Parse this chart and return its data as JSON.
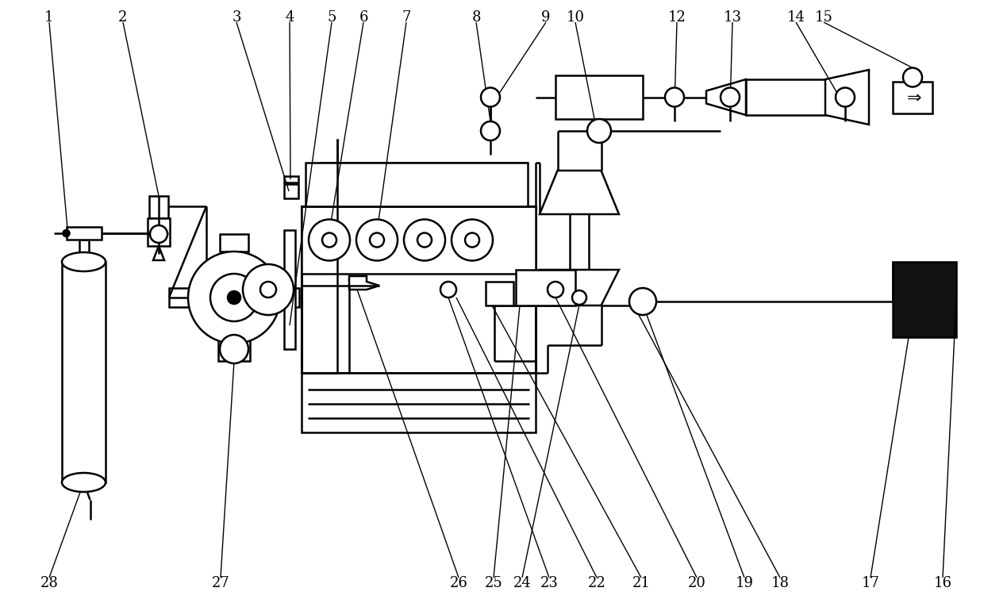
{
  "bg_color": "#ffffff",
  "lw": 1.8,
  "lw_thin": 1.0,
  "numbers_top": [
    [
      "1",
      62,
      738
    ],
    [
      "2",
      155,
      738
    ],
    [
      "3",
      298,
      738
    ],
    [
      "4",
      365,
      738
    ],
    [
      "5",
      418,
      738
    ],
    [
      "6",
      458,
      738
    ],
    [
      "7",
      512,
      738
    ],
    [
      "8",
      600,
      738
    ],
    [
      "9",
      688,
      738
    ],
    [
      "10",
      725,
      738
    ],
    [
      "12",
      853,
      738
    ],
    [
      "13",
      923,
      738
    ],
    [
      "14",
      1003,
      738
    ],
    [
      "15",
      1038,
      738
    ]
  ],
  "numbers_bottom": [
    [
      "28",
      62,
      25
    ],
    [
      "27",
      278,
      25
    ],
    [
      "26",
      578,
      25
    ],
    [
      "25",
      622,
      25
    ],
    [
      "24",
      658,
      25
    ],
    [
      "23",
      692,
      25
    ],
    [
      "22",
      752,
      25
    ],
    [
      "21",
      808,
      25
    ],
    [
      "20",
      878,
      25
    ],
    [
      "19",
      938,
      25
    ],
    [
      "18",
      983,
      25
    ],
    [
      "17",
      1097,
      25
    ],
    [
      "16",
      1188,
      25
    ]
  ]
}
